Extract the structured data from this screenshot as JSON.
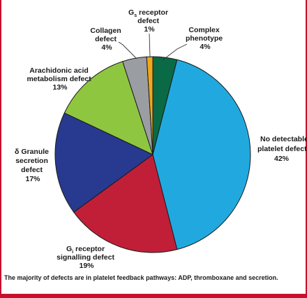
{
  "chart_data": {
    "type": "pie",
    "slices": [
      {
        "id": "complex",
        "lines": [
          "Complex",
          "phenotype"
        ],
        "pct": "4%",
        "value": 4,
        "color": "#0a6a45"
      },
      {
        "id": "nodetect",
        "lines": [
          "No detectable",
          "platelet defect"
        ],
        "pct": "42%",
        "value": 42,
        "color": "#21a9df"
      },
      {
        "id": "gi",
        "lines": [
          "G",
          "signalling defect"
        ],
        "gi_sub": "i",
        "gi_rest": " receptor",
        "pct": "19%",
        "value": 19,
        "color": "#c11f38"
      },
      {
        "id": "dgranule",
        "lines": [
          "δ Granule",
          "secretion",
          "defect"
        ],
        "pct": "17%",
        "value": 17,
        "color": "#283a8f"
      },
      {
        "id": "arachidonic",
        "lines": [
          "Arachidonic acid",
          "metabolism defect"
        ],
        "pct": "13%",
        "value": 13,
        "color": "#8fc640"
      },
      {
        "id": "collagen",
        "lines": [
          "Collagen",
          "defect"
        ],
        "pct": "4%",
        "value": 4,
        "color": "#9a9ea3"
      },
      {
        "id": "gs",
        "lines": [
          "G",
          "defect"
        ],
        "gs_sub": "s",
        "gs_rest": " receptor",
        "pct": "1%",
        "value": 1,
        "color": "#f0a81a"
      }
    ]
  },
  "caption": "The majority of defects are in platelet feedback pathways: ADP, thromboxane and secretion."
}
